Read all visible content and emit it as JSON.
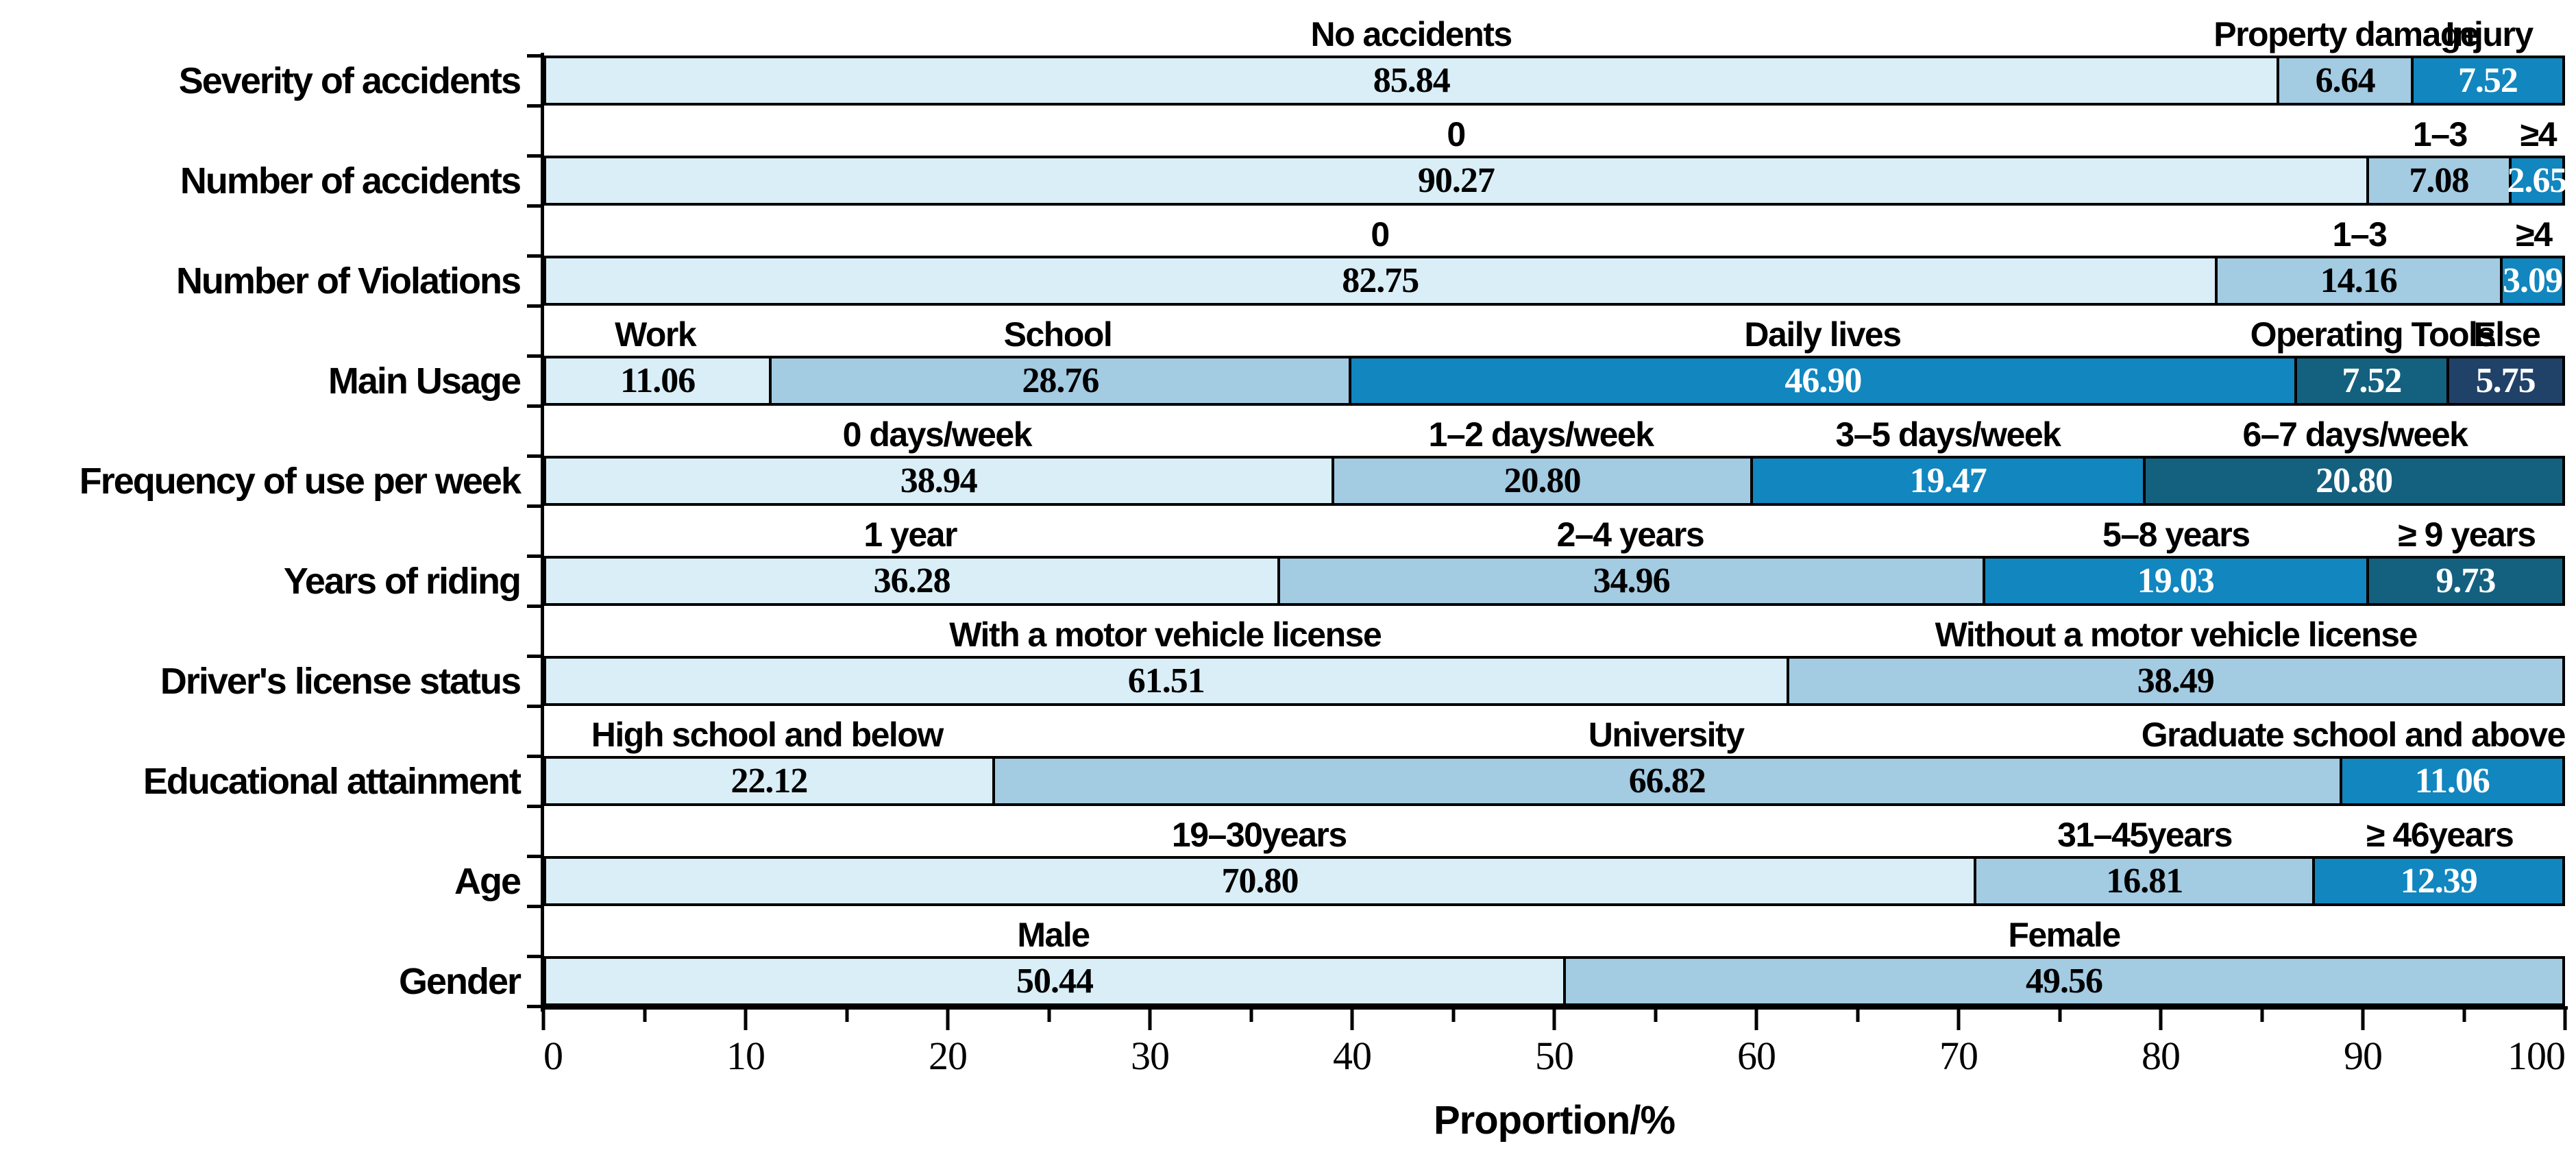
{
  "chart_data": {
    "type": "bar",
    "variant": "horizontal_stacked_percentage",
    "title": "",
    "xlabel": "Proportion/%",
    "ylabel": "",
    "xlim": [
      0,
      100
    ],
    "x_major_ticks": [
      0,
      10,
      20,
      30,
      40,
      50,
      60,
      70,
      80,
      90,
      100
    ],
    "x_minor_tick_step": 5,
    "grid": false,
    "legend": "none",
    "bar_outline_color": "#000000",
    "palette": [
      "#d9eef6",
      "#a3cbe2",
      "#1186bf",
      "#14607f",
      "#204168"
    ],
    "value_label_colors": [
      "#000000",
      "#000000",
      "#ffffff",
      "#ffffff",
      "#ffffff"
    ],
    "rows": [
      {
        "category": "Severity of accidents",
        "segments": [
          {
            "label": "No accidents",
            "value": 85.84
          },
          {
            "label": "Property damage",
            "value": 6.64
          },
          {
            "label": "Injury",
            "value": 7.52
          }
        ]
      },
      {
        "category": "Number of accidents",
        "segments": [
          {
            "label": "0",
            "value": 90.27
          },
          {
            "label": "1–3",
            "value": 7.08
          },
          {
            "label": "≥4",
            "value": 2.65
          }
        ]
      },
      {
        "category": "Number of Violations",
        "segments": [
          {
            "label": "0",
            "value": 82.75
          },
          {
            "label": "1–3",
            "value": 14.16
          },
          {
            "label": "≥4",
            "value": 3.09
          }
        ]
      },
      {
        "category": "Main Usage",
        "segments": [
          {
            "label": "Work",
            "value": 11.06
          },
          {
            "label": "School",
            "value": 28.76
          },
          {
            "label": "Daily lives",
            "value": 46.9
          },
          {
            "label": "Operating Tools",
            "value": 7.52
          },
          {
            "label": "Else",
            "value": 5.75
          }
        ]
      },
      {
        "category": "Frequency of use per week",
        "segments": [
          {
            "label": "0 days/week",
            "value": 38.94
          },
          {
            "label": "1–2 days/week",
            "value": 20.8
          },
          {
            "label": "3–5 days/week",
            "value": 19.47
          },
          {
            "label": "6–7 days/week",
            "value": 20.8
          }
        ]
      },
      {
        "category": "Years of riding",
        "segments": [
          {
            "label": "1 year",
            "value": 36.28
          },
          {
            "label": "2–4 years",
            "value": 34.96
          },
          {
            "label": "5–8 years",
            "value": 19.03
          },
          {
            "label": "≥ 9 years",
            "value": 9.73
          }
        ]
      },
      {
        "category": "Driver's license status",
        "segments": [
          {
            "label": "With a motor vehicle license",
            "value": 61.51
          },
          {
            "label": "Without a motor vehicle license",
            "value": 38.49
          }
        ]
      },
      {
        "category": "Educational attainment",
        "segments": [
          {
            "label": "High school and below",
            "value": 22.12
          },
          {
            "label": "University",
            "value": 66.82
          },
          {
            "label": "Graduate school and above",
            "value": 11.06
          }
        ]
      },
      {
        "category": "Age",
        "segments": [
          {
            "label": "19–30years",
            "value": 70.8
          },
          {
            "label": "31–45years",
            "value": 16.81
          },
          {
            "label": "≥ 46years",
            "value": 12.39
          }
        ]
      },
      {
        "category": "Gender",
        "segments": [
          {
            "label": "Male",
            "value": 50.44
          },
          {
            "label": "Female",
            "value": 49.56
          }
        ]
      }
    ]
  }
}
